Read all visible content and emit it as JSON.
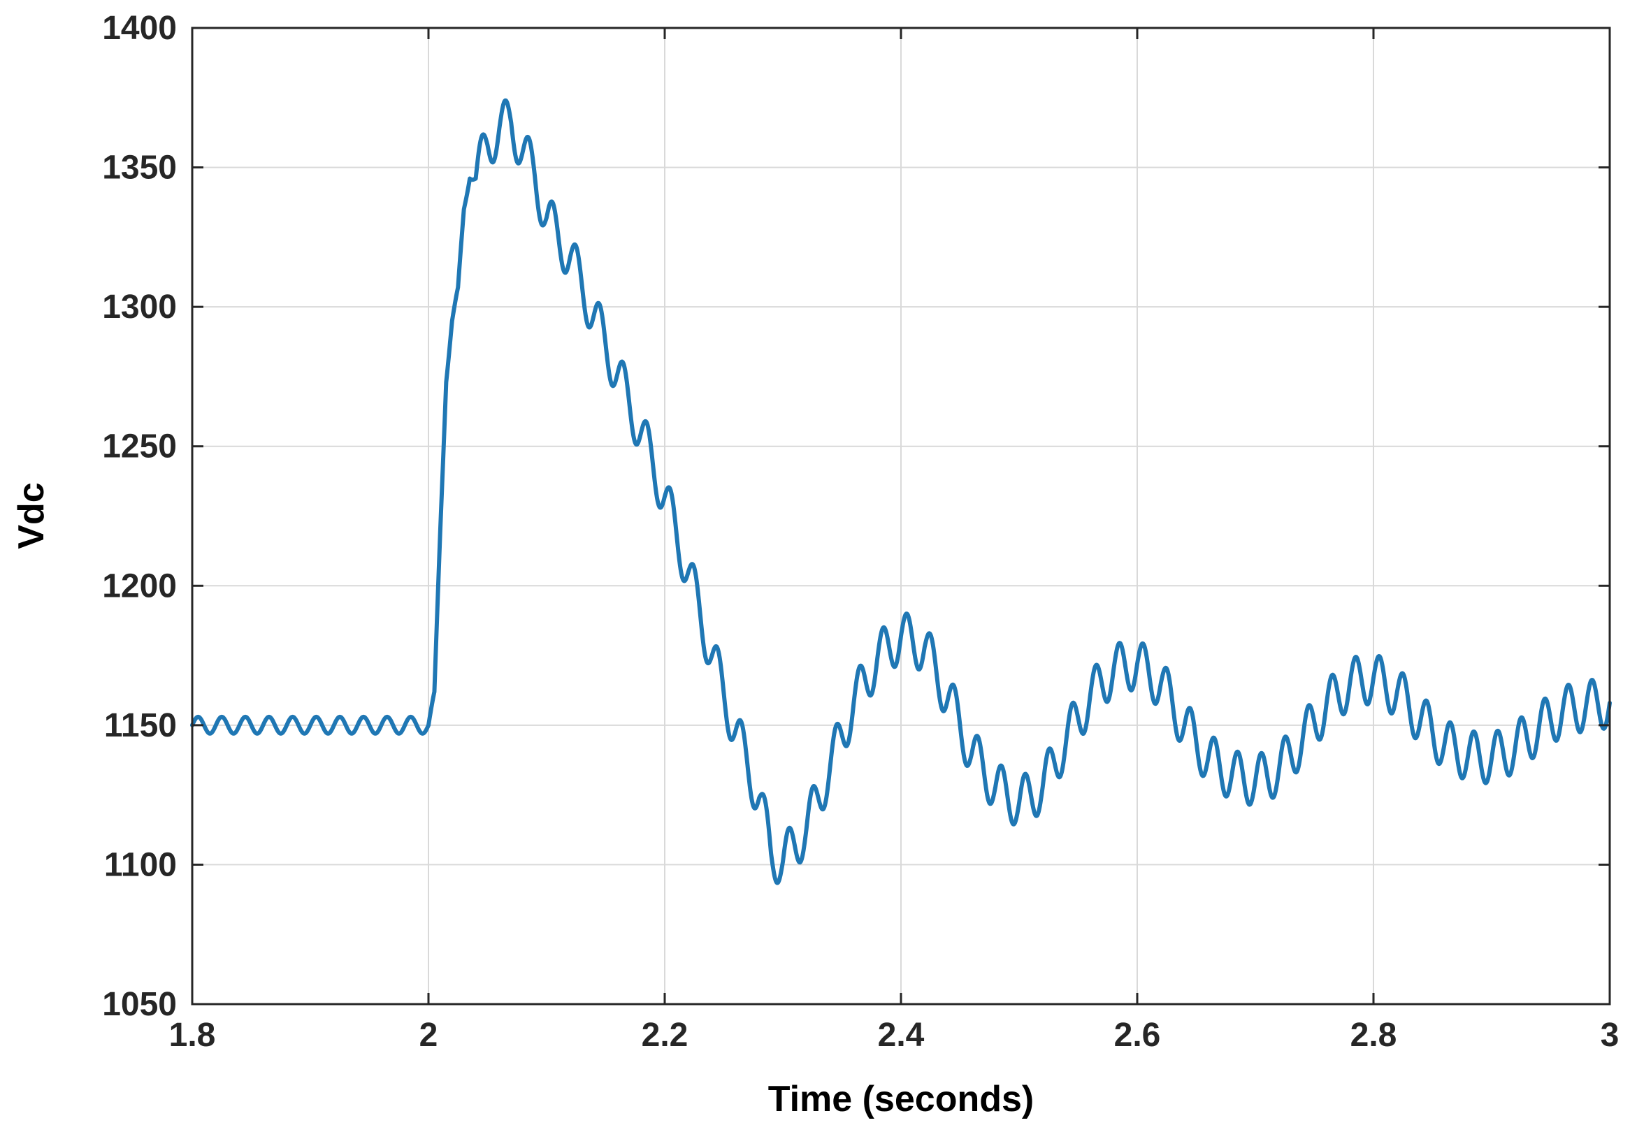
{
  "chart_data": {
    "type": "line",
    "xlabel": "Time (seconds)",
    "ylabel": "Vdc",
    "xlim": [
      1.8,
      3
    ],
    "ylim": [
      1050,
      1400
    ],
    "xticks": [
      1.8,
      2,
      2.2,
      2.4,
      2.6,
      2.8,
      3
    ],
    "xtick_labels": [
      "1.8",
      "2",
      "2.2",
      "2.4",
      "2.6",
      "2.8",
      "3"
    ],
    "yticks": [
      1050,
      1100,
      1150,
      1200,
      1250,
      1300,
      1350,
      1400
    ],
    "ytick_labels": [
      "1050",
      "1100",
      "1150",
      "1200",
      "1250",
      "1300",
      "1350",
      "1400"
    ],
    "grid": true,
    "legend": "none",
    "series": [
      {
        "color": "#1f77b4",
        "x": [
          1.8,
          1.99,
          2.0,
          2.005,
          2.01,
          2.015,
          2.02,
          2.025,
          2.03,
          2.035,
          2.04,
          2.05,
          2.06,
          2.07,
          2.08,
          2.09,
          2.1,
          2.12,
          2.14,
          2.16,
          2.18,
          2.2,
          2.22,
          2.24,
          2.26,
          2.28,
          2.29,
          2.3,
          2.32,
          2.34,
          2.36,
          2.38,
          2.4,
          2.42,
          2.44,
          2.46,
          2.48,
          2.5,
          2.52,
          2.54,
          2.56,
          2.58,
          2.6,
          2.62,
          2.64,
          2.66,
          2.68,
          2.7,
          2.72,
          2.74,
          2.76,
          2.78,
          2.8,
          2.82,
          2.84,
          2.86,
          2.88,
          2.9,
          2.92,
          2.94,
          2.96,
          2.98,
          3.0
        ],
        "y": [
          1150,
          1150,
          1150,
          1160,
          1220,
          1275,
          1295,
          1305,
          1335,
          1348,
          1346,
          1358,
          1364,
          1366,
          1356,
          1347,
          1332,
          1318,
          1297,
          1276,
          1255,
          1232,
          1205,
          1175,
          1148,
          1124,
          1104,
          1101,
          1113,
          1135,
          1158,
          1174,
          1182,
          1178,
          1160,
          1140,
          1128,
          1122,
          1128,
          1145,
          1160,
          1170,
          1172,
          1165,
          1150,
          1138,
          1132,
          1130,
          1134,
          1145,
          1157,
          1165,
          1167,
          1162,
          1152,
          1143,
          1139,
          1138,
          1142,
          1149,
          1155,
          1157,
          1158
        ],
        "ripple_amplitude": 9,
        "ripple_period": 0.02
      }
    ]
  }
}
